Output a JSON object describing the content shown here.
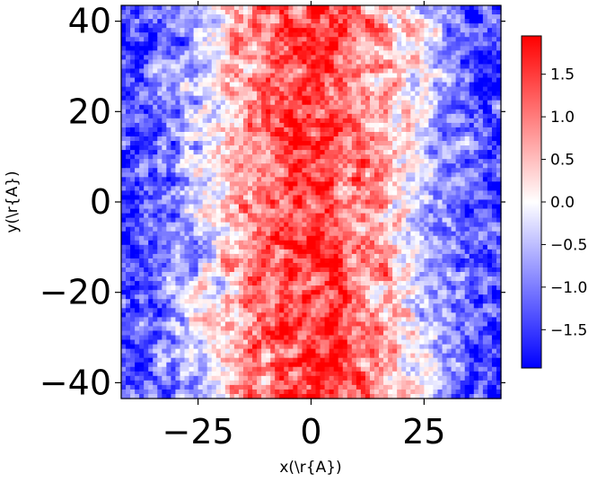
{
  "chart_data": {
    "type": "heatmap",
    "title": "",
    "xlabel": "x(\\r{A})",
    "ylabel": "y(\\r{A})",
    "xlim": [
      -42,
      42
    ],
    "ylim": [
      -43.5,
      43.5
    ],
    "xticks": [
      -25,
      0,
      25
    ],
    "xtick_labels": [
      "−25",
      "0",
      "25"
    ],
    "yticks": [
      -40,
      -20,
      0,
      20,
      40
    ],
    "ytick_labels": [
      "−40",
      "−20",
      "0",
      "20",
      "40"
    ],
    "colorbar": {
      "vmin": -1.95,
      "vmax": 1.95,
      "colormap": "bwr",
      "colors": [
        "#0000ff",
        "#ffffff",
        "#ff0000"
      ],
      "ticks": [
        -1.5,
        -1.0,
        -0.5,
        0.0,
        0.5,
        1.0,
        1.5
      ],
      "tick_labels": [
        "−1.5",
        "−1.0",
        "−0.5",
        "0.0",
        "0.5",
        "1.0",
        "1.5"
      ]
    },
    "grid": false,
    "value_pattern": "approximately symmetric in x: strongly positive (red) near x = 0, decreasing to strongly negative (blue) toward x = ±42, with dense pixel-level noise"
  }
}
